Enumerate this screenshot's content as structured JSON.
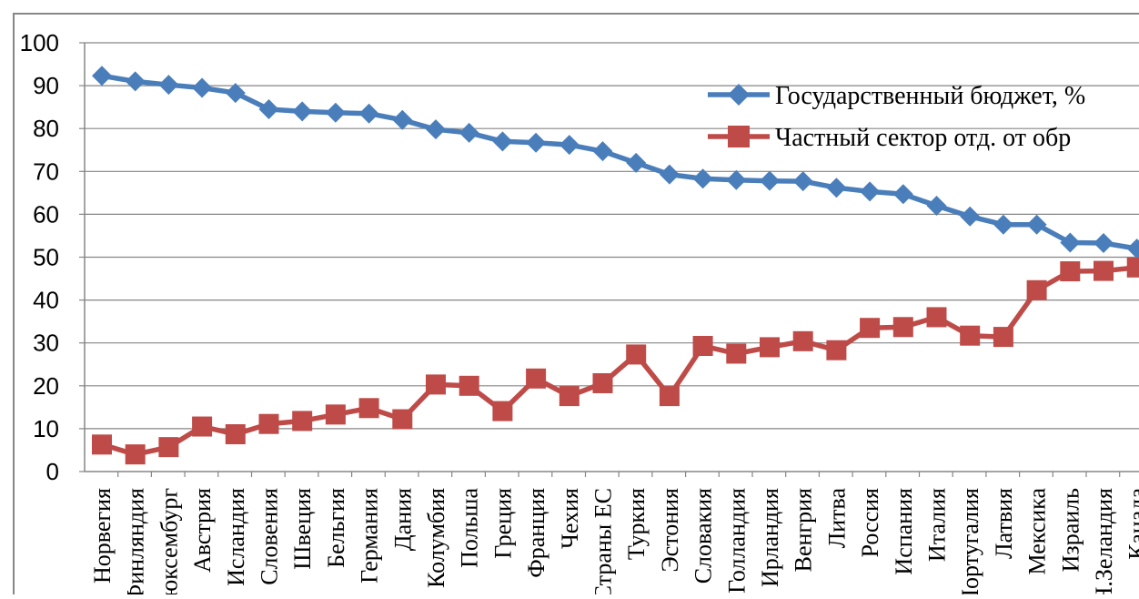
{
  "chart_data": {
    "type": "line",
    "ylim": [
      0,
      100
    ],
    "yticks": [
      0,
      10,
      20,
      30,
      40,
      50,
      60,
      70,
      80,
      90,
      100
    ],
    "grid": true,
    "legend_position": "top-right",
    "categories": [
      "Норвегия",
      "Финляндия",
      "Люксембург",
      "Австрия",
      "Исландия",
      "Словения",
      "Швеция",
      "Бельгия",
      "Германия",
      "Дания",
      "Колумбия",
      "Польша",
      "Греция",
      "Франция",
      "Чехия",
      "Страны ЕС",
      "Туркия",
      "Эстония",
      "Словакия",
      "Голландия",
      "Ирландия",
      "Венгрия",
      "Литва",
      "Россия",
      "Испания",
      "Италия",
      "Португалия",
      "Латвия",
      "Мексика",
      "Израиль",
      "Н.Зеландия",
      "Канада"
    ],
    "series": [
      {
        "name": "Государственный бюджет, %",
        "color": "#4a7ebb",
        "marker": "diamond",
        "values": [
          92.3,
          91,
          90.2,
          89.5,
          88.3,
          84.5,
          84,
          83.7,
          83.5,
          82,
          79.8,
          79,
          77,
          76.7,
          76.2,
          74.7,
          72,
          69.3,
          68.3,
          68,
          67.8,
          67.7,
          66.2,
          65.3,
          64.7,
          62,
          59.5,
          57.6,
          57.6,
          53.4,
          53.3,
          52
        ]
      },
      {
        "name": "Частный сектор отд. от обр",
        "color": "#be4b48",
        "marker": "square",
        "values": [
          6.3,
          4,
          5.7,
          10.5,
          8.7,
          11.1,
          11.8,
          13.3,
          14.8,
          12.2,
          20.3,
          20,
          14.1,
          21.7,
          17.6,
          20.6,
          27.3,
          17.6,
          29.3,
          27.5,
          29,
          30.4,
          28.3,
          33.5,
          33.7,
          36,
          31.7,
          31.4,
          42.3,
          46.7,
          46.8,
          47.6
        ]
      }
    ]
  }
}
